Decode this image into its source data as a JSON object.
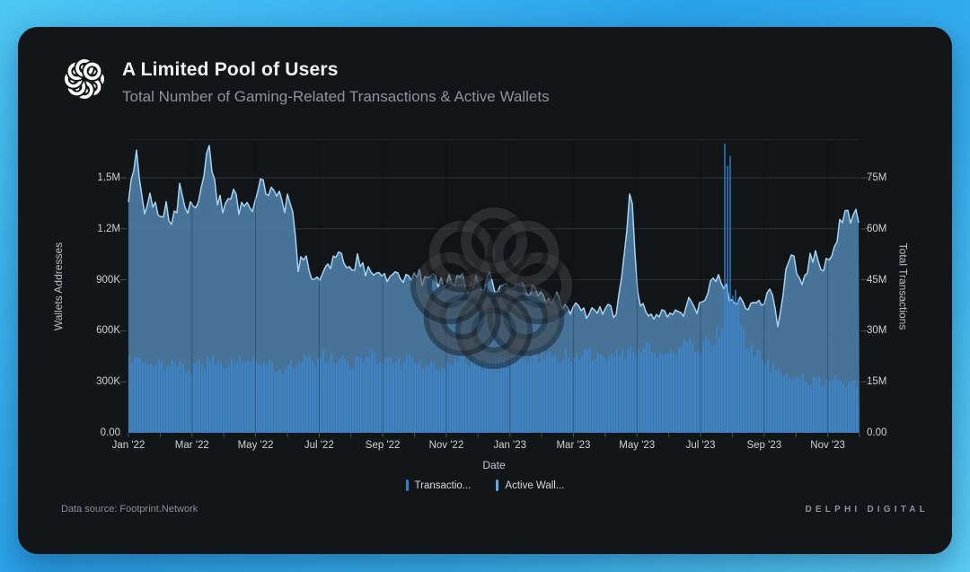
{
  "header": {
    "title": "A Limited Pool of Users",
    "subtitle": "Total Number of Gaming-Related Transactions & Active Wallets"
  },
  "footer": {
    "source": "Data source: Footprint.Network",
    "brand": "DELPHI DIGITAL"
  },
  "colors": {
    "card_bg": "#131619",
    "area_fill": "#4d81a8",
    "wallets_line": "#a7d3ef",
    "bars_fill": "rgba(56,143,235,0.62)",
    "gridline": "#2e3236",
    "transactions_legend": "#2e7fd0",
    "wallets_legend": "#61aadf"
  },
  "chart_data": {
    "type": "combo: bar + area/line, dual y-axis",
    "title": "A Limited Pool of Users",
    "subtitle": "Total Number of Gaming-Related Transactions & Active Wallets",
    "x": {
      "label": "Date",
      "start": "Jan 2022",
      "end": "Dec 2023",
      "interval": "weekly (100 points)",
      "tick_labels": [
        "Jan '22",
        "Mar '22",
        "May '22",
        "Jul '22",
        "Sep '22",
        "Nov '22",
        "Jan '23",
        "Mar '23",
        "May '23",
        "Jul '23",
        "Sep '23",
        "Nov '23"
      ],
      "months_span": 23
    },
    "y_left": {
      "label": "Wallets Addresses",
      "tick_labels": [
        "0.00",
        "300K",
        "600K",
        "900K",
        "1.2M",
        "1.5M"
      ],
      "tick_values_m": [
        0,
        0.3,
        0.6,
        0.9,
        1.2,
        1.5
      ],
      "top_value_m": 1.727
    },
    "y_right": {
      "label": "Total Transactions",
      "tick_labels": [
        "0.00",
        "15M",
        "30M",
        "45M",
        "60M",
        "75M"
      ],
      "tick_values_m": [
        0,
        15,
        30,
        45,
        60,
        75
      ],
      "top_value_m": 86.4
    },
    "legend_position": "bottom-center",
    "grid": "horizontal on, faint vertical at labeled months",
    "series": [
      {
        "name": "Transactions",
        "legend_label": "Transactio...",
        "type": "bar",
        "axis": "right",
        "unit": "millions of transactions",
        "legend_color": "#2e7fd0",
        "values": [
          22,
          21,
          22,
          20,
          21,
          19,
          22,
          20,
          18,
          21,
          19,
          22,
          21,
          20,
          22,
          21,
          21,
          22,
          20,
          21,
          19,
          18,
          20,
          21,
          22,
          21,
          23,
          22,
          21,
          22,
          20,
          21,
          22,
          23,
          21,
          22,
          21,
          20,
          22,
          21,
          20,
          21,
          19,
          20,
          21,
          22,
          20,
          21,
          20,
          21,
          22,
          21,
          22,
          23,
          21,
          22,
          23,
          24,
          22,
          23,
          22,
          23,
          24,
          22,
          23,
          22,
          24,
          23,
          25,
          24,
          26,
          24,
          23,
          25,
          24,
          26,
          27,
          25,
          28,
          26,
          30,
          81,
          42,
          30,
          26,
          24,
          21,
          19,
          18,
          17,
          16,
          17,
          15,
          16,
          14,
          15,
          16,
          14,
          15,
          14
        ]
      },
      {
        "name": "Active Wallets",
        "legend_label": "Active Wall...",
        "type": "area",
        "axis": "left",
        "unit": "millions of wallet addresses",
        "legend_color": "#61aadf",
        "values": [
          1.32,
          1.65,
          1.28,
          1.38,
          1.26,
          1.35,
          1.24,
          1.43,
          1.3,
          1.36,
          1.45,
          1.7,
          1.38,
          1.31,
          1.42,
          1.34,
          1.41,
          1.33,
          1.45,
          1.38,
          1.43,
          1.35,
          1.36,
          0.98,
          1.02,
          0.92,
          0.89,
          0.96,
          1.08,
          1.0,
          0.94,
          1.03,
          0.97,
          0.91,
          0.95,
          0.89,
          0.94,
          0.87,
          0.92,
          0.96,
          0.88,
          0.93,
          0.86,
          0.91,
          0.87,
          0.92,
          0.85,
          0.9,
          0.86,
          0.91,
          0.84,
          0.88,
          0.87,
          0.9,
          0.83,
          0.87,
          0.8,
          0.76,
          0.82,
          0.73,
          0.7,
          0.77,
          0.68,
          0.74,
          0.71,
          0.75,
          0.69,
          1.02,
          1.43,
          0.82,
          0.7,
          0.66,
          0.71,
          0.68,
          0.74,
          0.7,
          0.78,
          0.73,
          0.8,
          0.87,
          0.93,
          0.85,
          0.74,
          0.82,
          0.72,
          0.8,
          0.76,
          0.88,
          0.58,
          0.95,
          1.02,
          0.88,
          0.98,
          1.08,
          0.92,
          1.05,
          1.18,
          1.32,
          1.22,
          1.3
        ]
      }
    ]
  }
}
